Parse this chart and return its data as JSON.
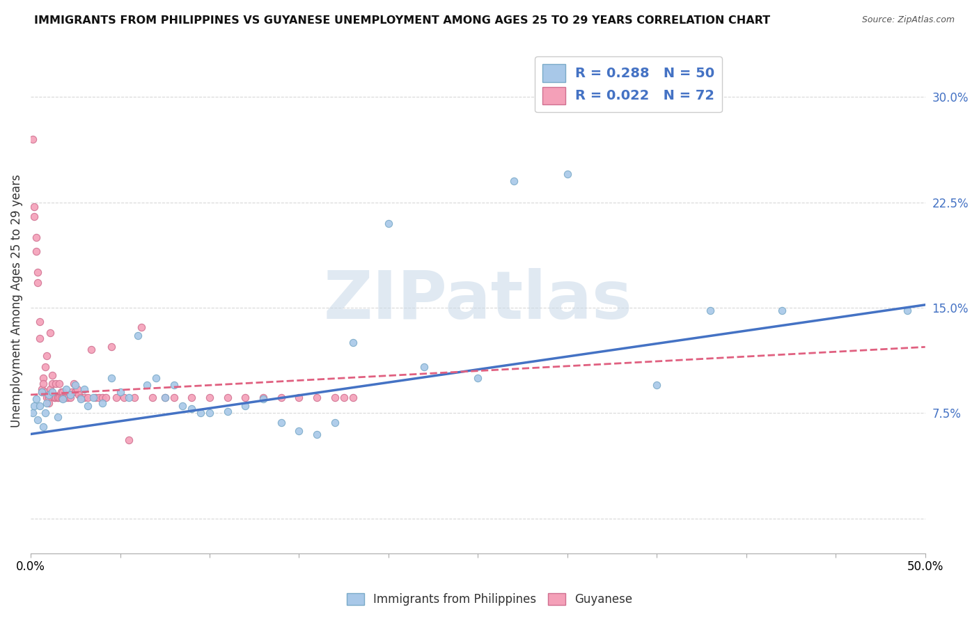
{
  "title": "IMMIGRANTS FROM PHILIPPINES VS GUYANESE UNEMPLOYMENT AMONG AGES 25 TO 29 YEARS CORRELATION CHART",
  "source": "Source: ZipAtlas.com",
  "ylabel": "Unemployment Among Ages 25 to 29 years",
  "ytick_values": [
    0.0,
    0.075,
    0.15,
    0.225,
    0.3
  ],
  "ytick_labels": [
    "",
    "7.5%",
    "15.0%",
    "22.5%",
    "30.0%"
  ],
  "xlim": [
    0.0,
    0.5
  ],
  "ylim": [
    -0.025,
    0.335
  ],
  "legend_entries": [
    {
      "label": "R = 0.288   N = 50",
      "facecolor": "#a8c8e8",
      "edgecolor": "#7aaac8"
    },
    {
      "label": "R = 0.022   N = 72",
      "facecolor": "#f4a0b8",
      "edgecolor": "#d07090"
    }
  ],
  "scatter_blue": {
    "x": [
      0.001,
      0.002,
      0.003,
      0.004,
      0.005,
      0.006,
      0.007,
      0.008,
      0.009,
      0.01,
      0.012,
      0.015,
      0.018,
      0.02,
      0.022,
      0.025,
      0.028,
      0.03,
      0.032,
      0.035,
      0.04,
      0.045,
      0.05,
      0.055,
      0.06,
      0.065,
      0.07,
      0.075,
      0.08,
      0.085,
      0.09,
      0.095,
      0.1,
      0.11,
      0.12,
      0.13,
      0.14,
      0.15,
      0.16,
      0.17,
      0.18,
      0.2,
      0.22,
      0.25,
      0.27,
      0.3,
      0.35,
      0.38,
      0.42,
      0.49
    ],
    "y": [
      0.075,
      0.08,
      0.085,
      0.07,
      0.08,
      0.09,
      0.065,
      0.075,
      0.082,
      0.088,
      0.09,
      0.072,
      0.085,
      0.092,
      0.088,
      0.095,
      0.085,
      0.092,
      0.08,
      0.086,
      0.082,
      0.1,
      0.09,
      0.086,
      0.13,
      0.095,
      0.1,
      0.086,
      0.095,
      0.08,
      0.078,
      0.075,
      0.075,
      0.076,
      0.08,
      0.085,
      0.068,
      0.062,
      0.06,
      0.068,
      0.125,
      0.21,
      0.108,
      0.1,
      0.24,
      0.245,
      0.095,
      0.148,
      0.148,
      0.148
    ],
    "facecolor": "#a8c8e8",
    "edgecolor": "#7aaac8",
    "size": 55,
    "alpha": 0.9
  },
  "scatter_pink": {
    "x": [
      0.001,
      0.002,
      0.002,
      0.003,
      0.003,
      0.004,
      0.004,
      0.005,
      0.005,
      0.006,
      0.006,
      0.007,
      0.007,
      0.008,
      0.008,
      0.009,
      0.009,
      0.01,
      0.01,
      0.011,
      0.011,
      0.012,
      0.012,
      0.013,
      0.013,
      0.014,
      0.014,
      0.015,
      0.015,
      0.016,
      0.016,
      0.017,
      0.017,
      0.018,
      0.018,
      0.019,
      0.02,
      0.021,
      0.022,
      0.023,
      0.024,
      0.025,
      0.026,
      0.027,
      0.028,
      0.03,
      0.032,
      0.034,
      0.036,
      0.038,
      0.04,
      0.042,
      0.045,
      0.048,
      0.052,
      0.055,
      0.058,
      0.062,
      0.068,
      0.075,
      0.08,
      0.09,
      0.1,
      0.11,
      0.12,
      0.13,
      0.14,
      0.15,
      0.16,
      0.17,
      0.175,
      0.18
    ],
    "y": [
      0.27,
      0.222,
      0.215,
      0.2,
      0.19,
      0.175,
      0.168,
      0.128,
      0.14,
      0.092,
      0.09,
      0.1,
      0.096,
      0.108,
      0.09,
      0.116,
      0.086,
      0.086,
      0.082,
      0.092,
      0.132,
      0.096,
      0.102,
      0.086,
      0.086,
      0.086,
      0.096,
      0.086,
      0.086,
      0.086,
      0.096,
      0.09,
      0.086,
      0.09,
      0.086,
      0.086,
      0.086,
      0.086,
      0.086,
      0.09,
      0.096,
      0.09,
      0.092,
      0.088,
      0.086,
      0.086,
      0.086,
      0.12,
      0.086,
      0.086,
      0.086,
      0.086,
      0.122,
      0.086,
      0.086,
      0.056,
      0.086,
      0.136,
      0.086,
      0.086,
      0.086,
      0.086,
      0.086,
      0.086,
      0.086,
      0.086,
      0.086,
      0.086,
      0.086,
      0.086,
      0.086,
      0.086
    ],
    "facecolor": "#f4a0b8",
    "edgecolor": "#d07090",
    "size": 55,
    "alpha": 0.9
  },
  "trendline_blue": {
    "x": [
      0.0,
      0.5
    ],
    "y": [
      0.06,
      0.152
    ],
    "color": "#4472c4",
    "linewidth": 2.5,
    "linestyle": "-"
  },
  "trendline_pink": {
    "x": [
      0.0,
      0.5
    ],
    "y": [
      0.088,
      0.122
    ],
    "color": "#e06080",
    "linewidth": 2.0,
    "linestyle": "--"
  },
  "watermark_text": "ZIPatlas",
  "watermark_color": "#c8d8e8",
  "background_color": "#ffffff",
  "grid_color": "#d8d8d8",
  "xtick_positions": [
    0.0,
    0.05,
    0.1,
    0.15,
    0.2,
    0.25,
    0.3,
    0.35,
    0.4,
    0.45,
    0.5
  ],
  "bottom_legend": [
    {
      "label": "Immigrants from Philippines",
      "facecolor": "#a8c8e8",
      "edgecolor": "#7aaac8"
    },
    {
      "label": "Guyanese",
      "facecolor": "#f4a0b8",
      "edgecolor": "#d07090"
    }
  ]
}
